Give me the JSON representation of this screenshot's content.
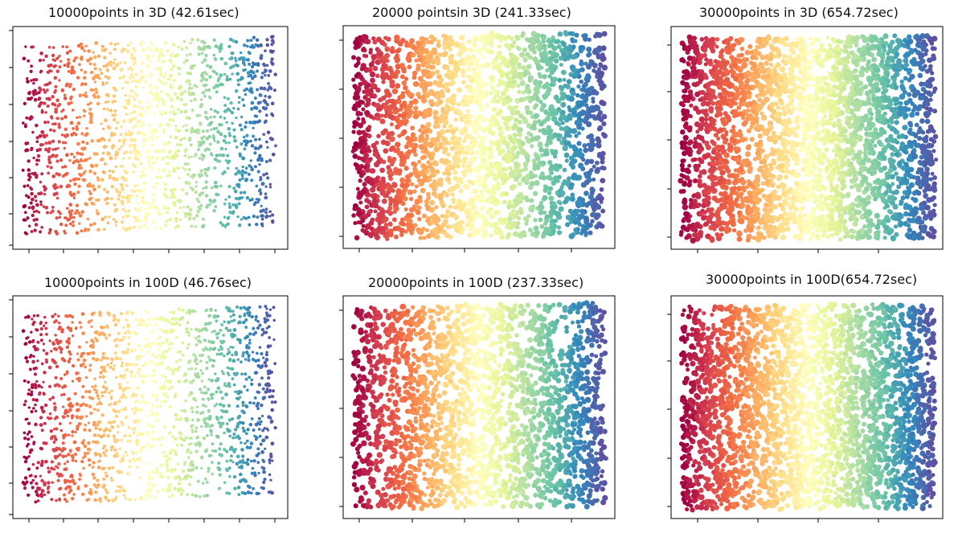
{
  "colors": {
    "spectral": [
      "#9e0142",
      "#d53e4f",
      "#f46d43",
      "#fdae61",
      "#fee08b",
      "#ffffbf",
      "#e6f598",
      "#abdda4",
      "#66c2a5",
      "#3288bd",
      "#5e4fa2"
    ],
    "frame": "#000000",
    "background": "#ffffff"
  },
  "chart_data": [
    {
      "type": "scatter",
      "title": "10000points in 3D (42.61sec)",
      "points": 10000,
      "dimension": "3D",
      "time_sec": 42.61,
      "colormap": "Spectral",
      "axis_tick_labels": "none",
      "grid": false,
      "legend": "none"
    },
    {
      "type": "scatter",
      "title": "20000 pointsin 3D (241.33sec)",
      "points": 20000,
      "dimension": "3D",
      "time_sec": 241.33,
      "colormap": "Spectral",
      "axis_tick_labels": "none",
      "grid": false,
      "legend": "none"
    },
    {
      "type": "scatter",
      "title": "30000points in 3D (654.72sec)",
      "points": 30000,
      "dimension": "3D",
      "time_sec": 654.72,
      "colormap": "Spectral",
      "axis_tick_labels": "none",
      "grid": false,
      "legend": "none"
    },
    {
      "type": "scatter",
      "title": "10000points in 100D (46.76sec)",
      "points": 10000,
      "dimension": "100D",
      "time_sec": 46.76,
      "colormap": "Spectral",
      "axis_tick_labels": "none",
      "grid": false,
      "legend": "none"
    },
    {
      "type": "scatter",
      "title": "20000points in 100D (237.33sec)",
      "points": 20000,
      "dimension": "100D",
      "time_sec": 237.33,
      "colormap": "Spectral",
      "axis_tick_labels": "none",
      "grid": false,
      "legend": "none"
    },
    {
      "type": "scatter",
      "title": "30000points in 100D(654.72sec)",
      "points": 30000,
      "dimension": "100D",
      "time_sec": 654.72,
      "colormap": "Spectral",
      "axis_tick_labels": "none",
      "grid": false,
      "legend": "none"
    }
  ]
}
